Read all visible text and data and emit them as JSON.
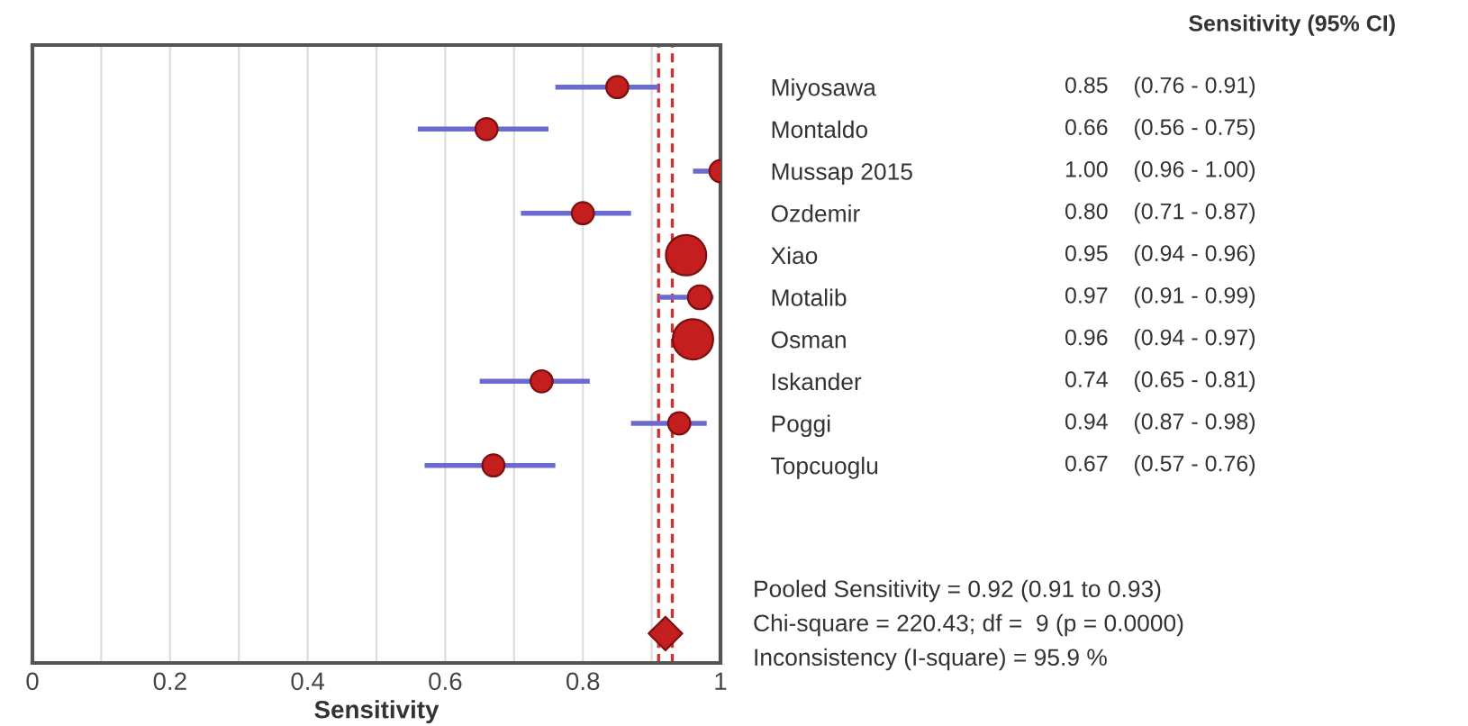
{
  "chart_data": {
    "type": "bubble",
    "orientation": "horizontal",
    "xlabel": "Sensitivity",
    "categories": [
      "Miyosawa",
      "Montaldo",
      "Mussap 2015",
      "Ozdemir",
      "Xiao",
      "Motalib",
      "Osman",
      "Iskander",
      "Poggi",
      "Topcuoglu",
      null,
      null,
      null,
      null
    ],
    "series": [
      {
        "color": "#c41e1e",
        "marker": "circle",
        "values": [
          0.85,
          0.66,
          1.0,
          0.8,
          0.95,
          0.97,
          0.96,
          0.74,
          0.94,
          0.67,
          null,
          null,
          null,
          null
        ],
        "errors": [
          [
            0.76,
            0.91
          ],
          [
            0.56,
            0.75
          ],
          [
            0.96,
            1.0
          ],
          [
            0.71,
            0.87
          ],
          null,
          [
            0.91,
            0.99
          ],
          null,
          [
            0.65,
            0.81
          ],
          [
            0.87,
            0.98
          ],
          [
            0.57,
            0.76
          ],
          null,
          null,
          null,
          null
        ],
        "sizes": [
          0.3,
          0.3,
          0.3,
          0.3,
          1,
          0.35,
          1,
          0.3,
          0.3,
          0.3,
          null,
          null,
          null,
          null
        ],
        "value_labels": [
          "0.85    (0.76 - 0.91)",
          "0.66    (0.56 - 0.75)",
          "1.00    (0.96 - 1.00)",
          "0.80    (0.71 - 0.87)",
          "0.95    (0.94 - 0.96)",
          "0.97    (0.91 - 0.99)",
          "0.96    (0.94 - 0.97)",
          "0.74    (0.65 - 0.81)",
          "0.94    (0.87 - 0.98)",
          "0.67    (0.57 - 0.76)",
          null,
          null,
          null,
          null
        ]
      },
      {
        "type": "scatter",
        "color": "#c41e1e",
        "marker": "diamond",
        "values": [
          null,
          null,
          null,
          null,
          null,
          null,
          null,
          null,
          null,
          null,
          null,
          null,
          null,
          0.92
        ]
      }
    ],
    "xlim": [
      0,
      1
    ],
    "xticks": [
      0,
      {
        "value": 0.1,
        "label": null
      },
      0.2,
      {
        "value": 0.3,
        "label": null
      },
      0.4,
      {
        "value": 0.5,
        "label": null
      },
      0.6,
      {
        "value": 0.7,
        "label": null
      },
      0.8,
      {
        "value": 0.9,
        "label": null
      },
      1
    ],
    "grid": "x",
    "ref_lines": [
      {
        "axis": "x",
        "value": 0.91,
        "color": "#d03030",
        "line_style": "dashed"
      },
      {
        "axis": "x",
        "value": 0.93,
        "color": "#d03030",
        "line_style": "dashed"
      }
    ],
    "annotations": [
      "Sensitivity (95% CI)",
      "Pooled Sensitivity = 0.92 (0.91 to 0.93)",
      "Chi-square = 220.43; df =  9 (p = 0.0000)",
      "Inconsistency (I-square) = 95.9 %"
    ]
  }
}
